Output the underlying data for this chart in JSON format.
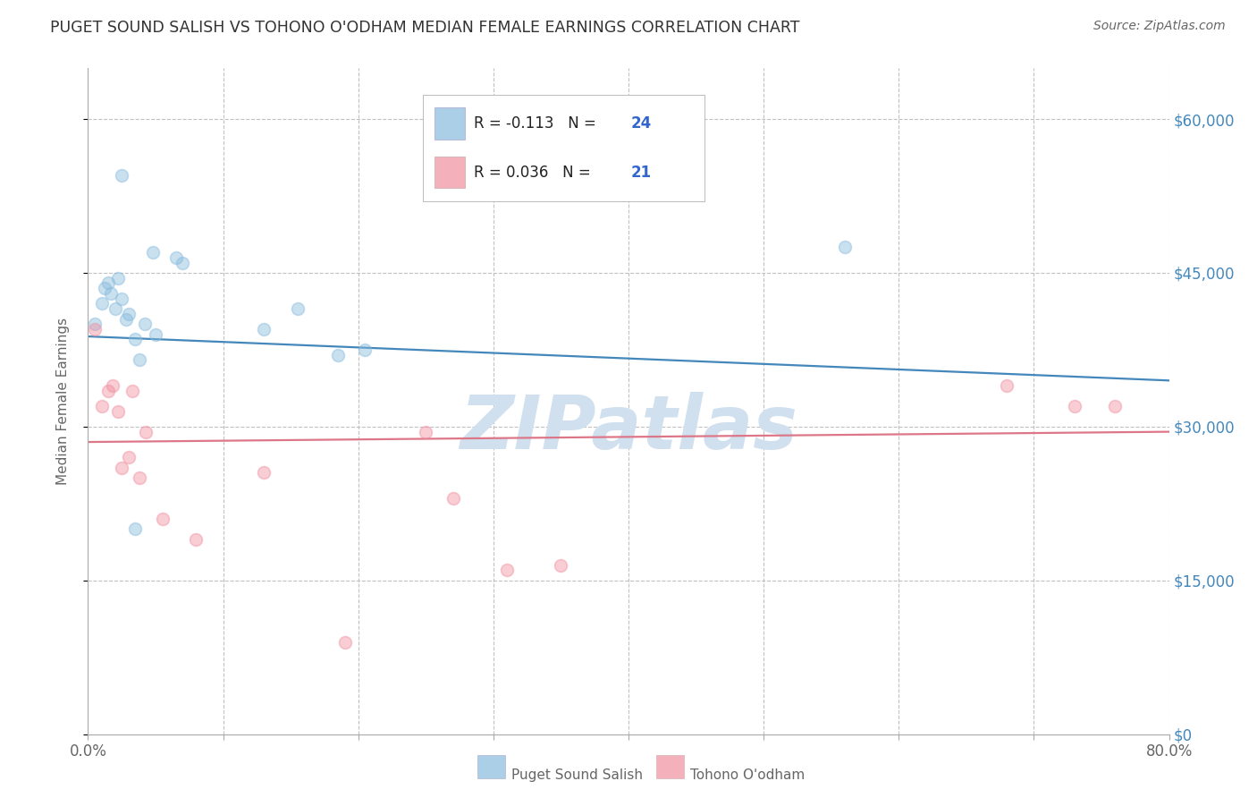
{
  "title": "PUGET SOUND SALISH VS TOHONO O'ODHAM MEDIAN FEMALE EARNINGS CORRELATION CHART",
  "source": "Source: ZipAtlas.com",
  "ylabel": "Median Female Earnings",
  "xlim": [
    0.0,
    0.8
  ],
  "ylim": [
    0,
    65000
  ],
  "yticks": [
    0,
    15000,
    30000,
    45000,
    60000
  ],
  "ytick_labels_right": [
    "$0",
    "$15,000",
    "$30,000",
    "$45,000",
    "$60,000"
  ],
  "xticks": [
    0.0,
    0.1,
    0.2,
    0.3,
    0.4,
    0.5,
    0.6,
    0.7,
    0.8
  ],
  "xtick_labels": [
    "0.0%",
    "",
    "",
    "",
    "",
    "",
    "",
    "",
    "80.0%"
  ],
  "legend_entries": [
    {
      "label": "Puget Sound Salish",
      "R": "-0.113",
      "N": "24",
      "color": "#a8c8e8"
    },
    {
      "label": "Tohono O'odham",
      "R": "0.036",
      "N": "21",
      "color": "#f4b8c4"
    }
  ],
  "blue_scatter_x": [
    0.005,
    0.01,
    0.012,
    0.015,
    0.017,
    0.02,
    0.022,
    0.025,
    0.028,
    0.03,
    0.035,
    0.038,
    0.042,
    0.048,
    0.065,
    0.07,
    0.13,
    0.155,
    0.185,
    0.205,
    0.025,
    0.05,
    0.56,
    0.035
  ],
  "blue_scatter_y": [
    40000,
    42000,
    43500,
    44000,
    43000,
    41500,
    44500,
    42500,
    40500,
    41000,
    38500,
    36500,
    40000,
    47000,
    46500,
    46000,
    39500,
    41500,
    37000,
    37500,
    54500,
    39000,
    47500,
    20000
  ],
  "pink_scatter_x": [
    0.005,
    0.01,
    0.015,
    0.018,
    0.022,
    0.025,
    0.03,
    0.033,
    0.038,
    0.043,
    0.055,
    0.08,
    0.13,
    0.25,
    0.27,
    0.31,
    0.35,
    0.68,
    0.73,
    0.76,
    0.19
  ],
  "pink_scatter_y": [
    39500,
    32000,
    33500,
    34000,
    31500,
    26000,
    27000,
    33500,
    25000,
    29500,
    21000,
    19000,
    25500,
    29500,
    23000,
    16000,
    16500,
    34000,
    32000,
    32000,
    9000
  ],
  "blue_line_x": [
    0.0,
    0.8
  ],
  "blue_line_y": [
    38800,
    34500
  ],
  "pink_line_x": [
    0.0,
    0.8
  ],
  "pink_line_y": [
    28500,
    29500
  ],
  "scatter_size": 100,
  "scatter_alpha": 0.45,
  "blue_color": "#88bbdd",
  "pink_color": "#f090a0",
  "blue_line_color": "#4488bb",
  "pink_line_color": "#dd7788",
  "bg_color": "#ffffff",
  "grid_color": "#bbbbbb",
  "title_color": "#333333",
  "axis_label_color": "#666666",
  "right_tick_color": "#4488bb",
  "watermark_text": "ZIPatlas",
  "watermark_color": "#d0e0ee",
  "legend_text_color_R": "#222222",
  "legend_text_color_N": "#3366cc"
}
